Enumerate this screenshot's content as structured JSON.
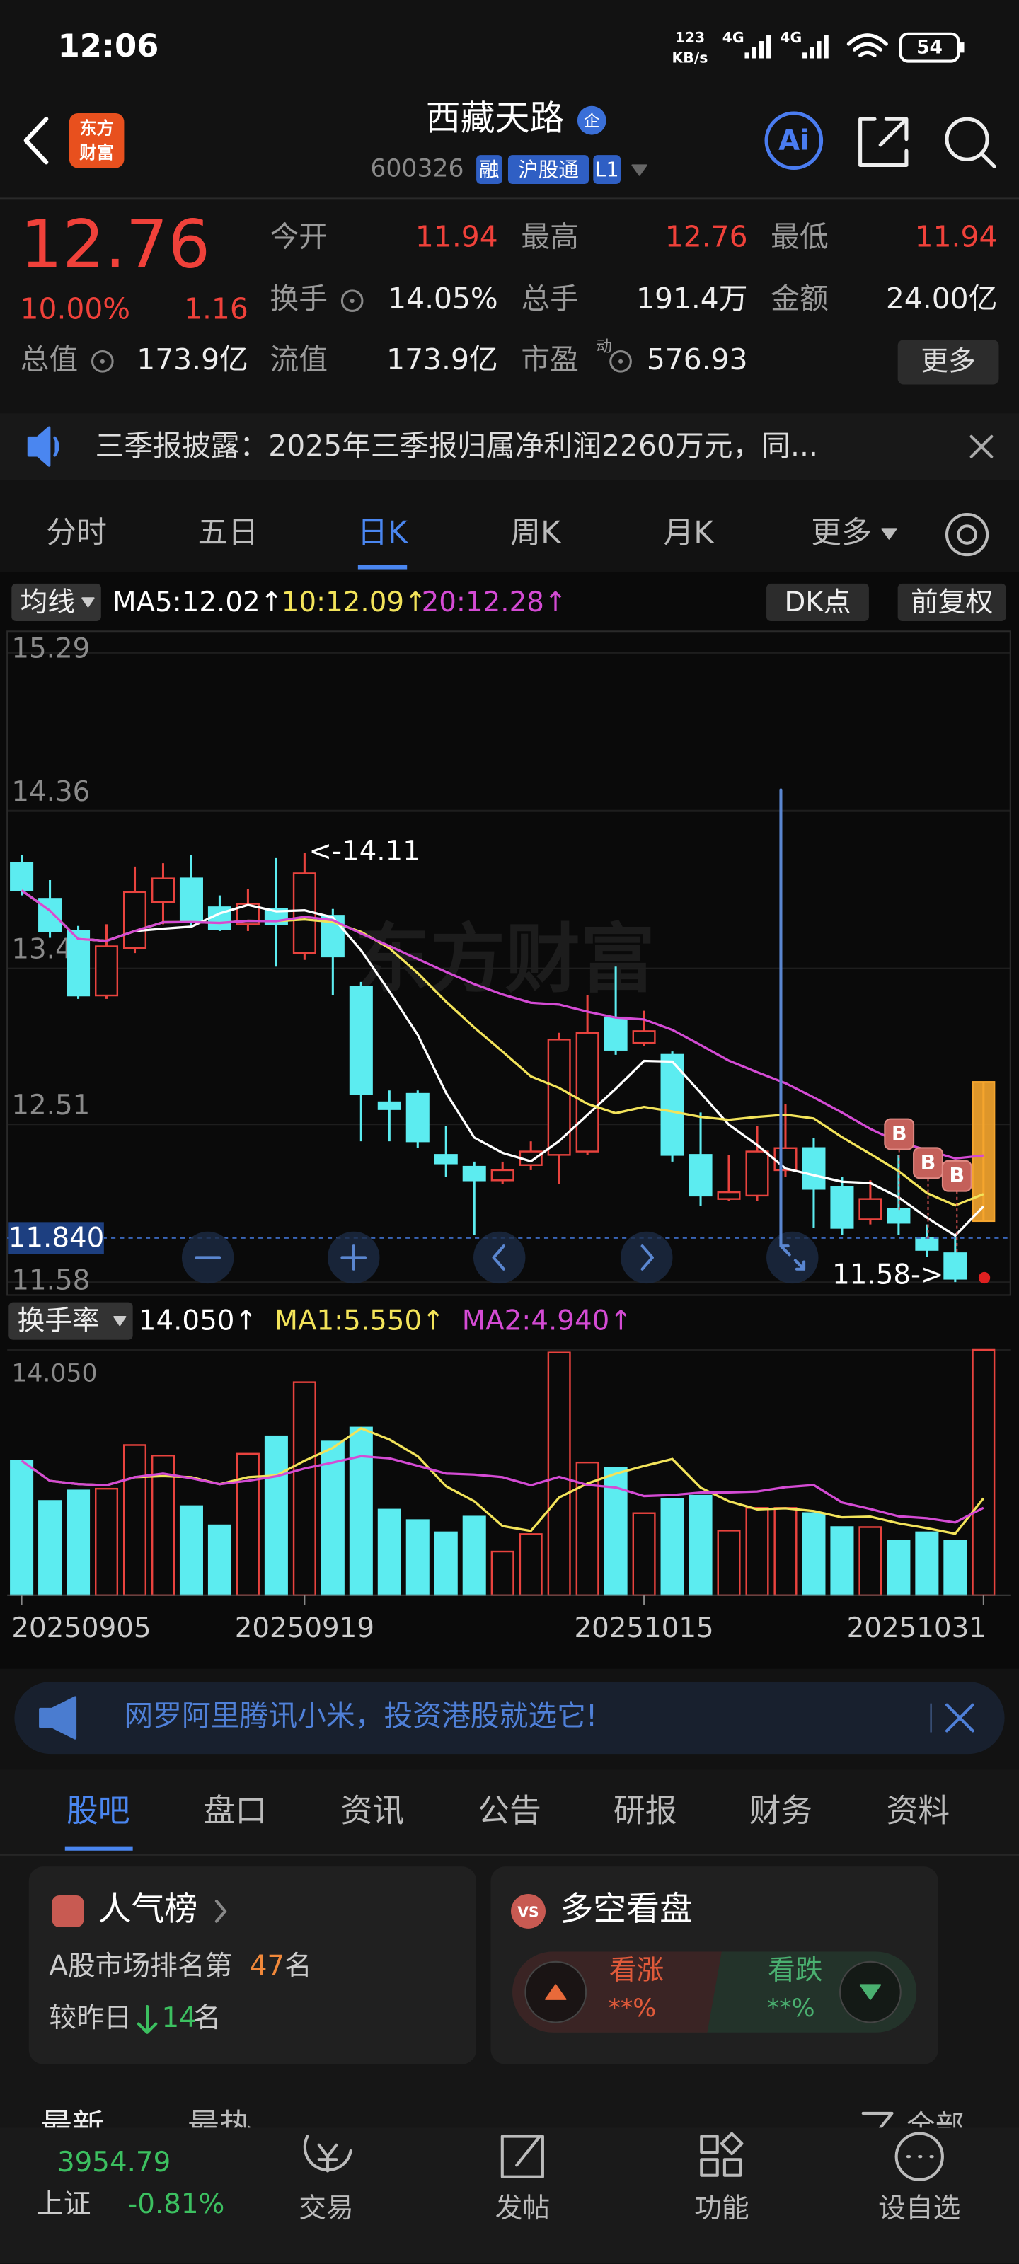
{
  "status_bar": {
    "time": "12:06",
    "speed": "123",
    "speed_unit": "KB/s",
    "network": [
      "4G",
      "4G"
    ],
    "battery": "54"
  },
  "header": {
    "logo": [
      "东方",
      "财富"
    ],
    "title": "西藏天路",
    "tag": "企",
    "code": "600326",
    "badges": [
      "融",
      "沪股通",
      "L1"
    ],
    "ai": "Ai"
  },
  "quote": {
    "price": "12.76",
    "change_pct": "10.00%",
    "change": "1.16",
    "fields": [
      {
        "label": "今开",
        "value": "11.94"
      },
      {
        "label": "最高",
        "value": "12.76"
      },
      {
        "label": "最低",
        "value": "11.94"
      },
      {
        "label": "换手",
        "value": "14.05%"
      },
      {
        "label": "总手",
        "value": "191.4万"
      },
      {
        "label": "金额",
        "value": "24.00亿"
      },
      {
        "label": "总值",
        "value": "173.9亿"
      },
      {
        "label": "流值",
        "value": "173.9亿"
      },
      {
        "label": "市盈",
        "sup": "动",
        "value": "576.93"
      }
    ],
    "more": "更多"
  },
  "news": "三季报披露：2025年三季报归属净利润2260万元，同...",
  "period_tabs": [
    "分时",
    "五日",
    "日K",
    "周K",
    "月K",
    "更多"
  ],
  "chart_data": [
    {
      "type": "candlestick",
      "indicator": "均线",
      "ma_labels": [
        "MA5:12.02↑",
        "10:12.09↑",
        "20:12.28↑"
      ],
      "buttons": [
        "DK点",
        "前复权"
      ],
      "ylim": [
        11.58,
        15.29
      ],
      "yticks": [
        15.29,
        14.36,
        13.43,
        12.51,
        11.58
      ],
      "open": [
        14.05,
        13.84,
        13.65,
        13.27,
        13.55,
        13.82,
        13.96,
        13.79,
        13.69,
        13.78,
        13.52,
        13.74,
        13.32,
        12.64,
        12.69,
        12.33,
        12.26,
        12.18,
        12.27,
        12.33,
        12.35,
        13.14,
        12.99,
        12.92,
        12.33,
        12.07,
        12.09,
        12.24,
        12.37,
        12.14,
        11.95,
        12.01,
        11.84,
        11.75,
        11.94
      ],
      "high": [
        14.1,
        13.95,
        13.68,
        13.69,
        14.03,
        14.05,
        14.1,
        13.86,
        13.9,
        14.08,
        14.11,
        13.78,
        13.35,
        12.71,
        12.71,
        12.5,
        12.29,
        12.29,
        12.41,
        13.05,
        13.27,
        13.44,
        13.18,
        12.94,
        12.58,
        12.33,
        12.5,
        12.63,
        12.43,
        12.2,
        12.18,
        12.33,
        11.92,
        11.86,
        12.76
      ],
      "low": [
        13.86,
        13.61,
        13.25,
        13.25,
        13.52,
        13.69,
        13.67,
        13.65,
        13.65,
        13.44,
        13.48,
        13.27,
        12.41,
        12.41,
        12.37,
        12.2,
        11.86,
        12.16,
        12.24,
        12.16,
        12.33,
        12.92,
        12.97,
        12.29,
        12.03,
        12.06,
        12.06,
        12.2,
        11.9,
        11.86,
        11.92,
        11.86,
        11.73,
        11.58,
        11.94
      ],
      "close": [
        13.89,
        13.65,
        13.27,
        13.56,
        13.88,
        13.96,
        13.71,
        13.66,
        13.81,
        13.69,
        13.99,
        13.5,
        12.69,
        12.6,
        12.41,
        12.28,
        12.18,
        12.24,
        12.35,
        13.01,
        13.05,
        12.95,
        13.06,
        12.33,
        12.09,
        12.11,
        12.35,
        12.37,
        12.13,
        11.9,
        12.07,
        11.93,
        11.77,
        11.6,
        12.76
      ],
      "current": {
        "value": 11.84,
        "label": "11.840"
      },
      "high_label": "<-14.11",
      "low_label": "11.58->",
      "signals": [
        "B",
        "B",
        "B"
      ],
      "watermark": "东方财富",
      "colors": {
        "up": "#e8433e",
        "down": "#5cecf0",
        "today": "#f5a52e",
        "ma": [
          "#ffffff",
          "#f2e35a",
          "#d44bd4"
        ]
      }
    },
    {
      "type": "bar",
      "indicator": "换手率",
      "labels": [
        "14.050↑",
        "MA1:5.550↑",
        "MA2:4.940↑"
      ],
      "ylim": [
        0,
        14.05
      ],
      "yticks": [
        {
          "value": 14.05,
          "label": "14.050"
        }
      ],
      "categories": [
        "20250905",
        null,
        null,
        null,
        null,
        null,
        null,
        null,
        null,
        null,
        "20250919",
        null,
        null,
        null,
        null,
        null,
        null,
        null,
        null,
        null,
        null,
        null,
        "20251015",
        null,
        null,
        null,
        null,
        null,
        null,
        null,
        null,
        null,
        null,
        null,
        "20251031"
      ],
      "values": [
        7.7,
        5.4,
        6.0,
        6.1,
        8.6,
        8.0,
        5.1,
        4.0,
        8.1,
        9.1,
        12.2,
        8.8,
        9.6,
        4.9,
        4.3,
        3.6,
        4.5,
        2.5,
        3.5,
        13.9,
        7.6,
        7.3,
        4.7,
        5.5,
        5.7,
        3.7,
        5.0,
        5.0,
        4.7,
        3.9,
        3.9,
        3.1,
        3.6,
        3.1,
        14.05
      ]
    }
  ],
  "ad": "网罗阿里腾讯小米，投资港股就选它!",
  "section_tabs": [
    "股吧",
    "盘口",
    "资讯",
    "公告",
    "研报",
    "财务",
    "资料"
  ],
  "popularity": {
    "title": "人气榜",
    "rank_prefix": "A股市场排名第",
    "rank": "47",
    "rank_suffix": "名",
    "change_prefix": "较昨日",
    "change": "14",
    "change_suffix": "名"
  },
  "sentiment": {
    "title": "多空看盘",
    "icon": "VS",
    "bull": "看涨",
    "bull_value": "**%",
    "bear": "看跌",
    "bear_value": "**%"
  },
  "feed_tabs": [
    "最新",
    "最热",
    "全部"
  ],
  "bottom_nav": {
    "index_value": "3954.79",
    "index_name": "上证",
    "index_change": "-0.81%",
    "items": [
      "交易",
      "发帖",
      "功能",
      "设自选"
    ]
  }
}
